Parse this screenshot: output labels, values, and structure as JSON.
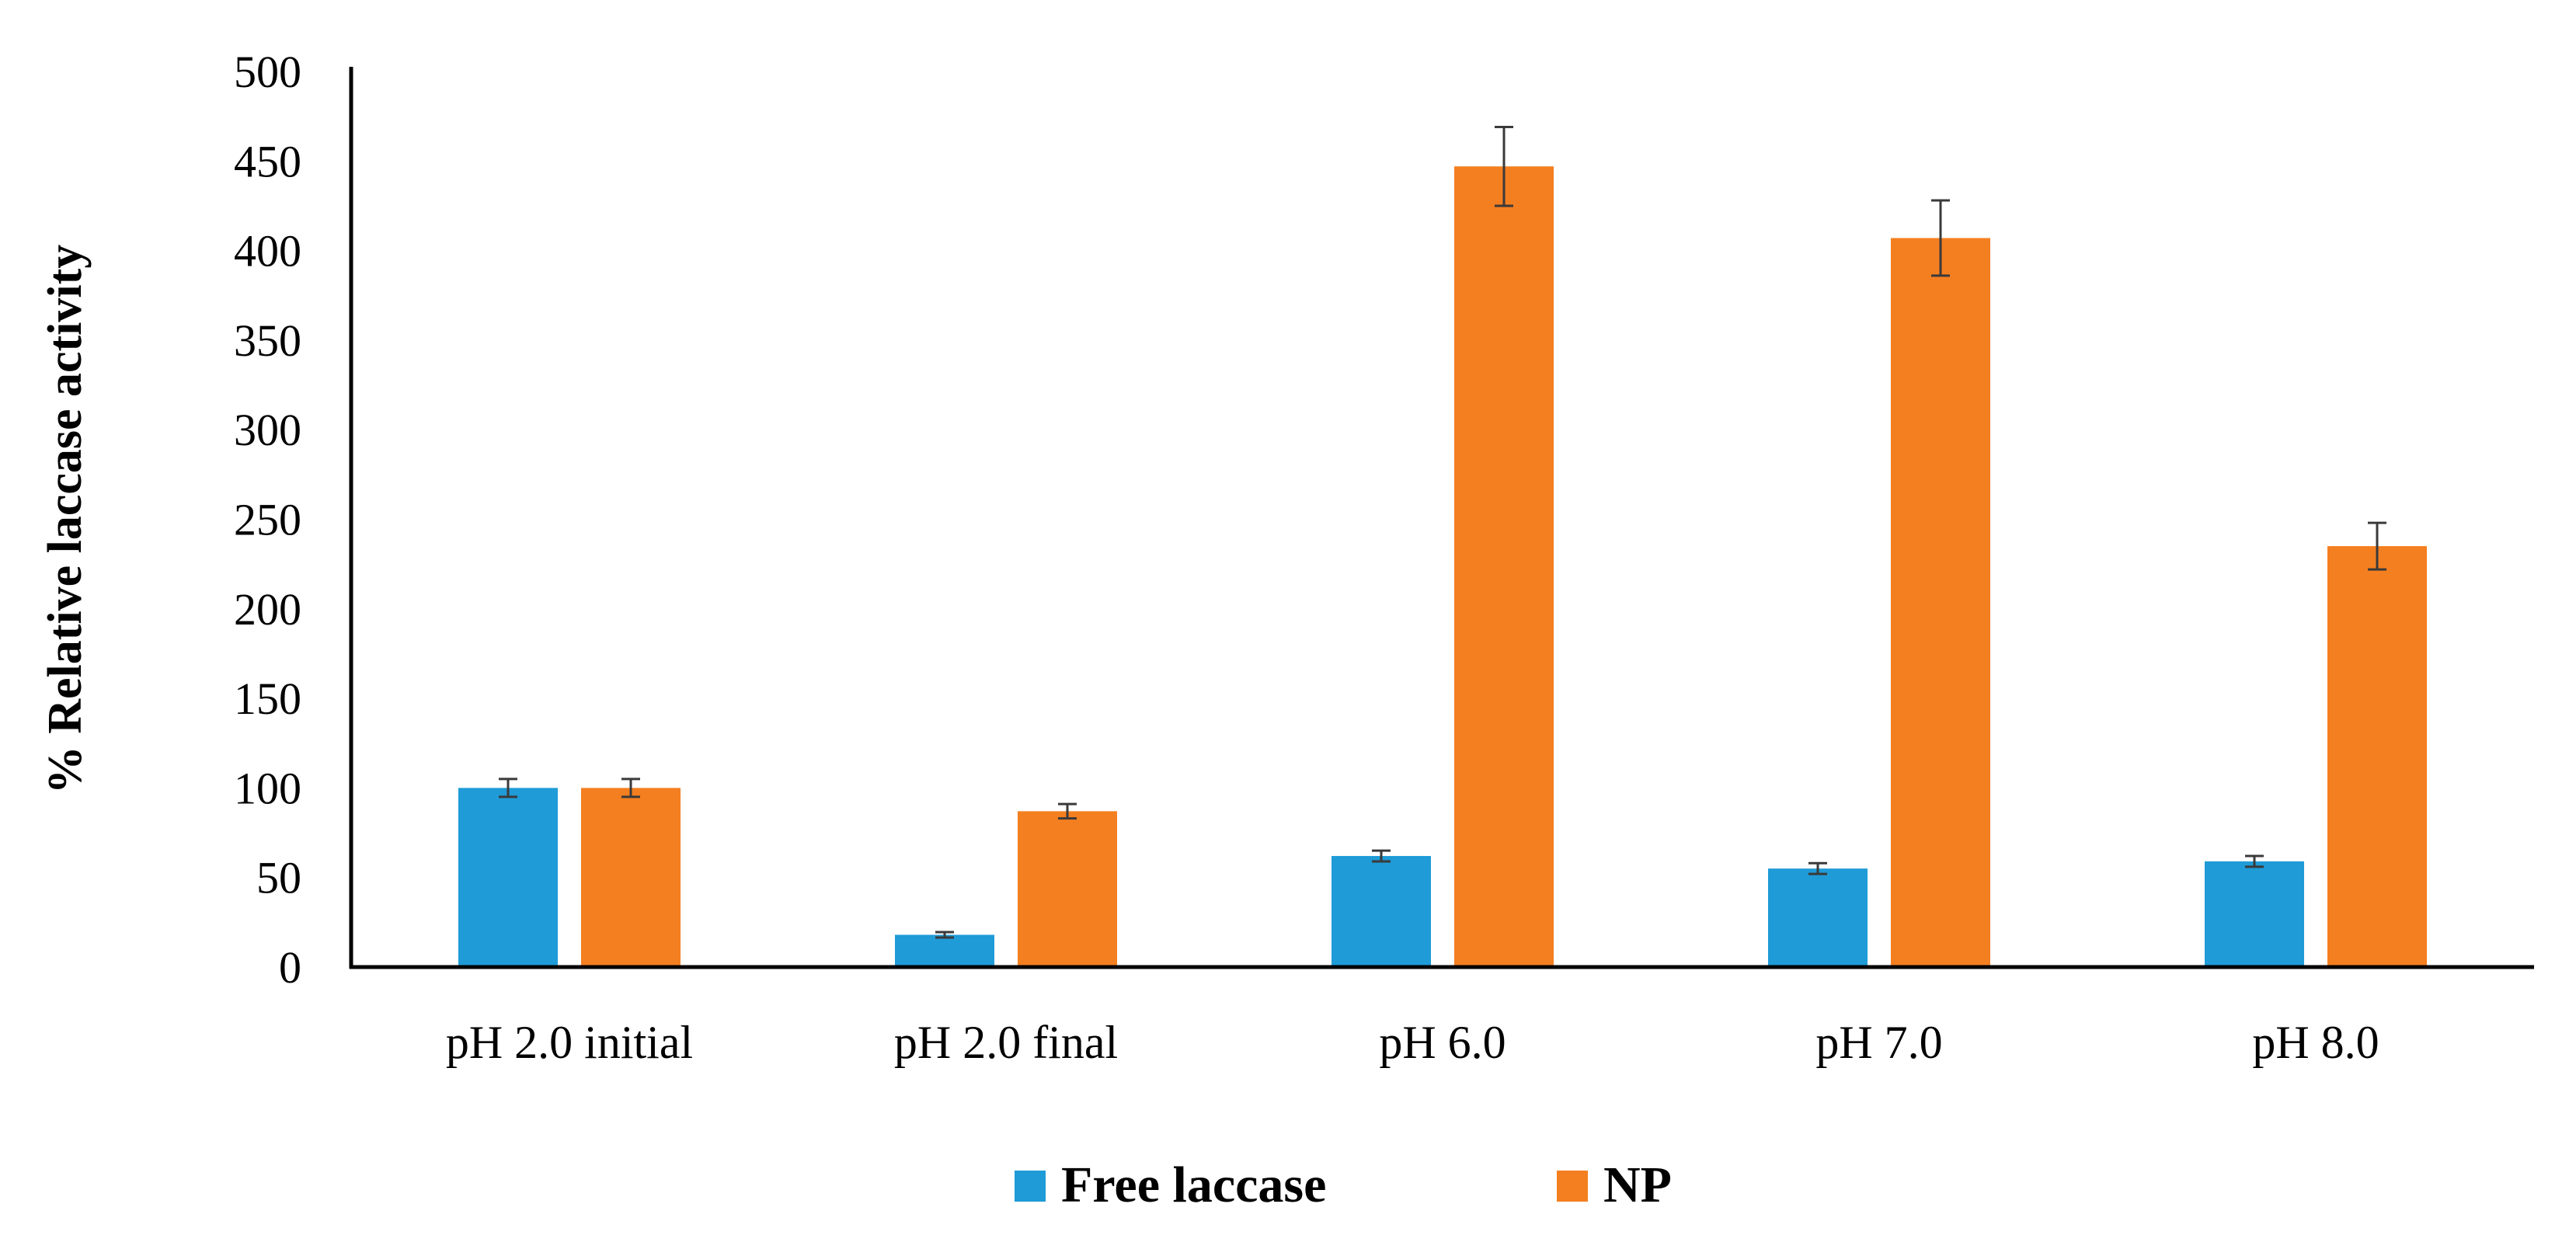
{
  "chart_data": {
    "type": "bar",
    "title": "",
    "xlabel": "",
    "ylabel": "% Relative laccase activity",
    "ylim": [
      0,
      500
    ],
    "yticks": [
      0,
      50,
      100,
      150,
      200,
      250,
      300,
      350,
      400,
      450,
      500
    ],
    "grid": false,
    "legend_position": "bottom",
    "categories": [
      "pH 2.0 initial",
      "pH 2.0 final",
      "pH 6.0",
      "pH 7.0",
      "pH 8.0"
    ],
    "series": [
      {
        "name": "Free laccase",
        "color": "#1f9bd7",
        "values": [
          100,
          18,
          62,
          55,
          59
        ],
        "errors": [
          5,
          1.5,
          3,
          3,
          3
        ]
      },
      {
        "name": "NP",
        "color": "#f47f20",
        "values": [
          100,
          87,
          447,
          407,
          235
        ],
        "errors": [
          5,
          4,
          22,
          21,
          13
        ]
      }
    ]
  }
}
